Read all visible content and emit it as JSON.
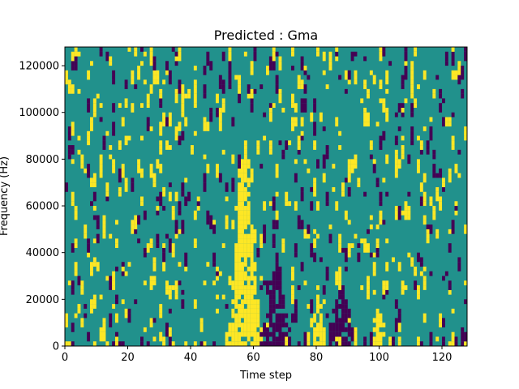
{
  "chart_data": {
    "type": "heatmap",
    "title": "Predicted : Gma",
    "xlabel": "Time step",
    "ylabel": "Frequency (Hz)",
    "xlim": [
      0,
      128
    ],
    "ylim": [
      0,
      128000
    ],
    "xticks": [
      0,
      20,
      40,
      60,
      80,
      100,
      120
    ],
    "yticks": [
      0,
      20000,
      40000,
      60000,
      80000,
      100000,
      120000
    ],
    "n_time_steps": 128,
    "n_freq_bins": 64,
    "colormap": {
      "low": "#440154",
      "mid": "#21918c",
      "high": "#fde725"
    },
    "background_value": "mid",
    "high_bands": [
      [
        0,
        1
      ],
      [
        1,
        2
      ],
      [
        9,
        1
      ],
      [
        16,
        2
      ],
      [
        23,
        1
      ],
      [
        31,
        2
      ],
      [
        34,
        1
      ],
      [
        38,
        1
      ],
      [
        41,
        1
      ],
      [
        44,
        1
      ],
      [
        51,
        3
      ],
      [
        52,
        3
      ],
      [
        53,
        10
      ],
      [
        54,
        22
      ],
      [
        55,
        34
      ],
      [
        56,
        40
      ],
      [
        57,
        45
      ],
      [
        58,
        40
      ],
      [
        59,
        26
      ],
      [
        60,
        18
      ],
      [
        61,
        10
      ],
      [
        62,
        4
      ],
      [
        66,
        1
      ],
      [
        70,
        2
      ],
      [
        73,
        1
      ],
      [
        77,
        3
      ],
      [
        79,
        7
      ],
      [
        80,
        14
      ],
      [
        81,
        10
      ],
      [
        82,
        4
      ],
      [
        87,
        2
      ],
      [
        92,
        4
      ],
      [
        98,
        6
      ],
      [
        99,
        8
      ],
      [
        100,
        7
      ],
      [
        101,
        5
      ],
      [
        106,
        2
      ],
      [
        112,
        1
      ],
      [
        118,
        2
      ],
      [
        122,
        2
      ],
      [
        127,
        1
      ]
    ],
    "low_bands": [
      [
        2,
        1
      ],
      [
        17,
        1
      ],
      [
        26,
        1
      ],
      [
        33,
        2
      ],
      [
        43,
        1
      ],
      [
        47,
        1
      ],
      [
        60,
        1
      ],
      [
        62,
        4
      ],
      [
        63,
        5
      ],
      [
        64,
        7
      ],
      [
        65,
        14
      ],
      [
        66,
        16
      ],
      [
        67,
        20
      ],
      [
        68,
        18
      ],
      [
        69,
        12
      ],
      [
        70,
        8
      ],
      [
        71,
        4
      ],
      [
        74,
        2
      ],
      [
        76,
        3
      ],
      [
        84,
        5
      ],
      [
        85,
        8
      ],
      [
        86,
        10
      ],
      [
        87,
        12
      ],
      [
        88,
        14
      ],
      [
        89,
        12
      ],
      [
        90,
        8
      ],
      [
        91,
        4
      ],
      [
        95,
        2
      ],
      [
        97,
        3
      ],
      [
        104,
        2
      ],
      [
        108,
        2
      ],
      [
        113,
        1
      ],
      [
        120,
        2
      ],
      [
        124,
        2
      ],
      [
        126,
        4
      ],
      [
        127,
        3
      ]
    ],
    "scatter_seed": 7,
    "scatter_high_density": 0.055,
    "scatter_low_density": 0.035
  }
}
